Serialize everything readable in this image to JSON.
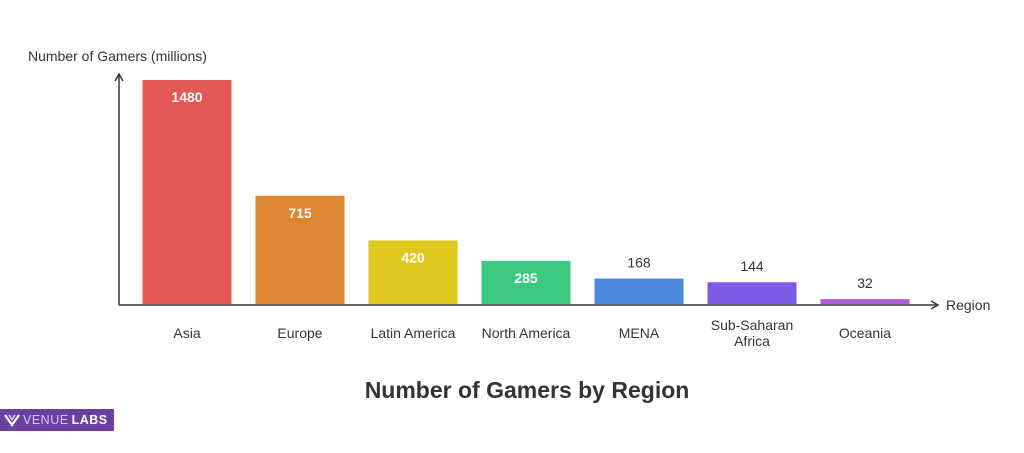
{
  "chart_data": {
    "type": "bar",
    "title": "Number of Gamers by Region",
    "ylabel": "Number of Gamers (millions)",
    "xlabel": "Region",
    "categories": [
      "Asia",
      "Europe",
      "Latin America",
      "North America",
      "MENA",
      "Sub-Saharan Africa",
      "Oceania"
    ],
    "category_lines": [
      [
        "Asia"
      ],
      [
        "Europe"
      ],
      [
        "Latin America"
      ],
      [
        "North America"
      ],
      [
        "MENA"
      ],
      [
        "Sub-Saharan",
        "Africa"
      ],
      [
        "Oceania"
      ]
    ],
    "values": [
      1480,
      715,
      420,
      285,
      168,
      144,
      32
    ],
    "value_labels": [
      "1480",
      "715",
      "420",
      "285",
      "168",
      "144",
      "32"
    ],
    "colors": [
      "#e55753",
      "#e0852f",
      "#dfc81c",
      "#3cc77f",
      "#4b88e0",
      "#7c5ce6",
      "#b45bdc"
    ],
    "ylim": [
      0,
      1480
    ],
    "grid": false,
    "legend": "none"
  },
  "brand": {
    "name_part1": "VENUE",
    "name_part2": "LABS",
    "icon": "venuelabs-v-icon",
    "color": "#6b3fa0"
  }
}
